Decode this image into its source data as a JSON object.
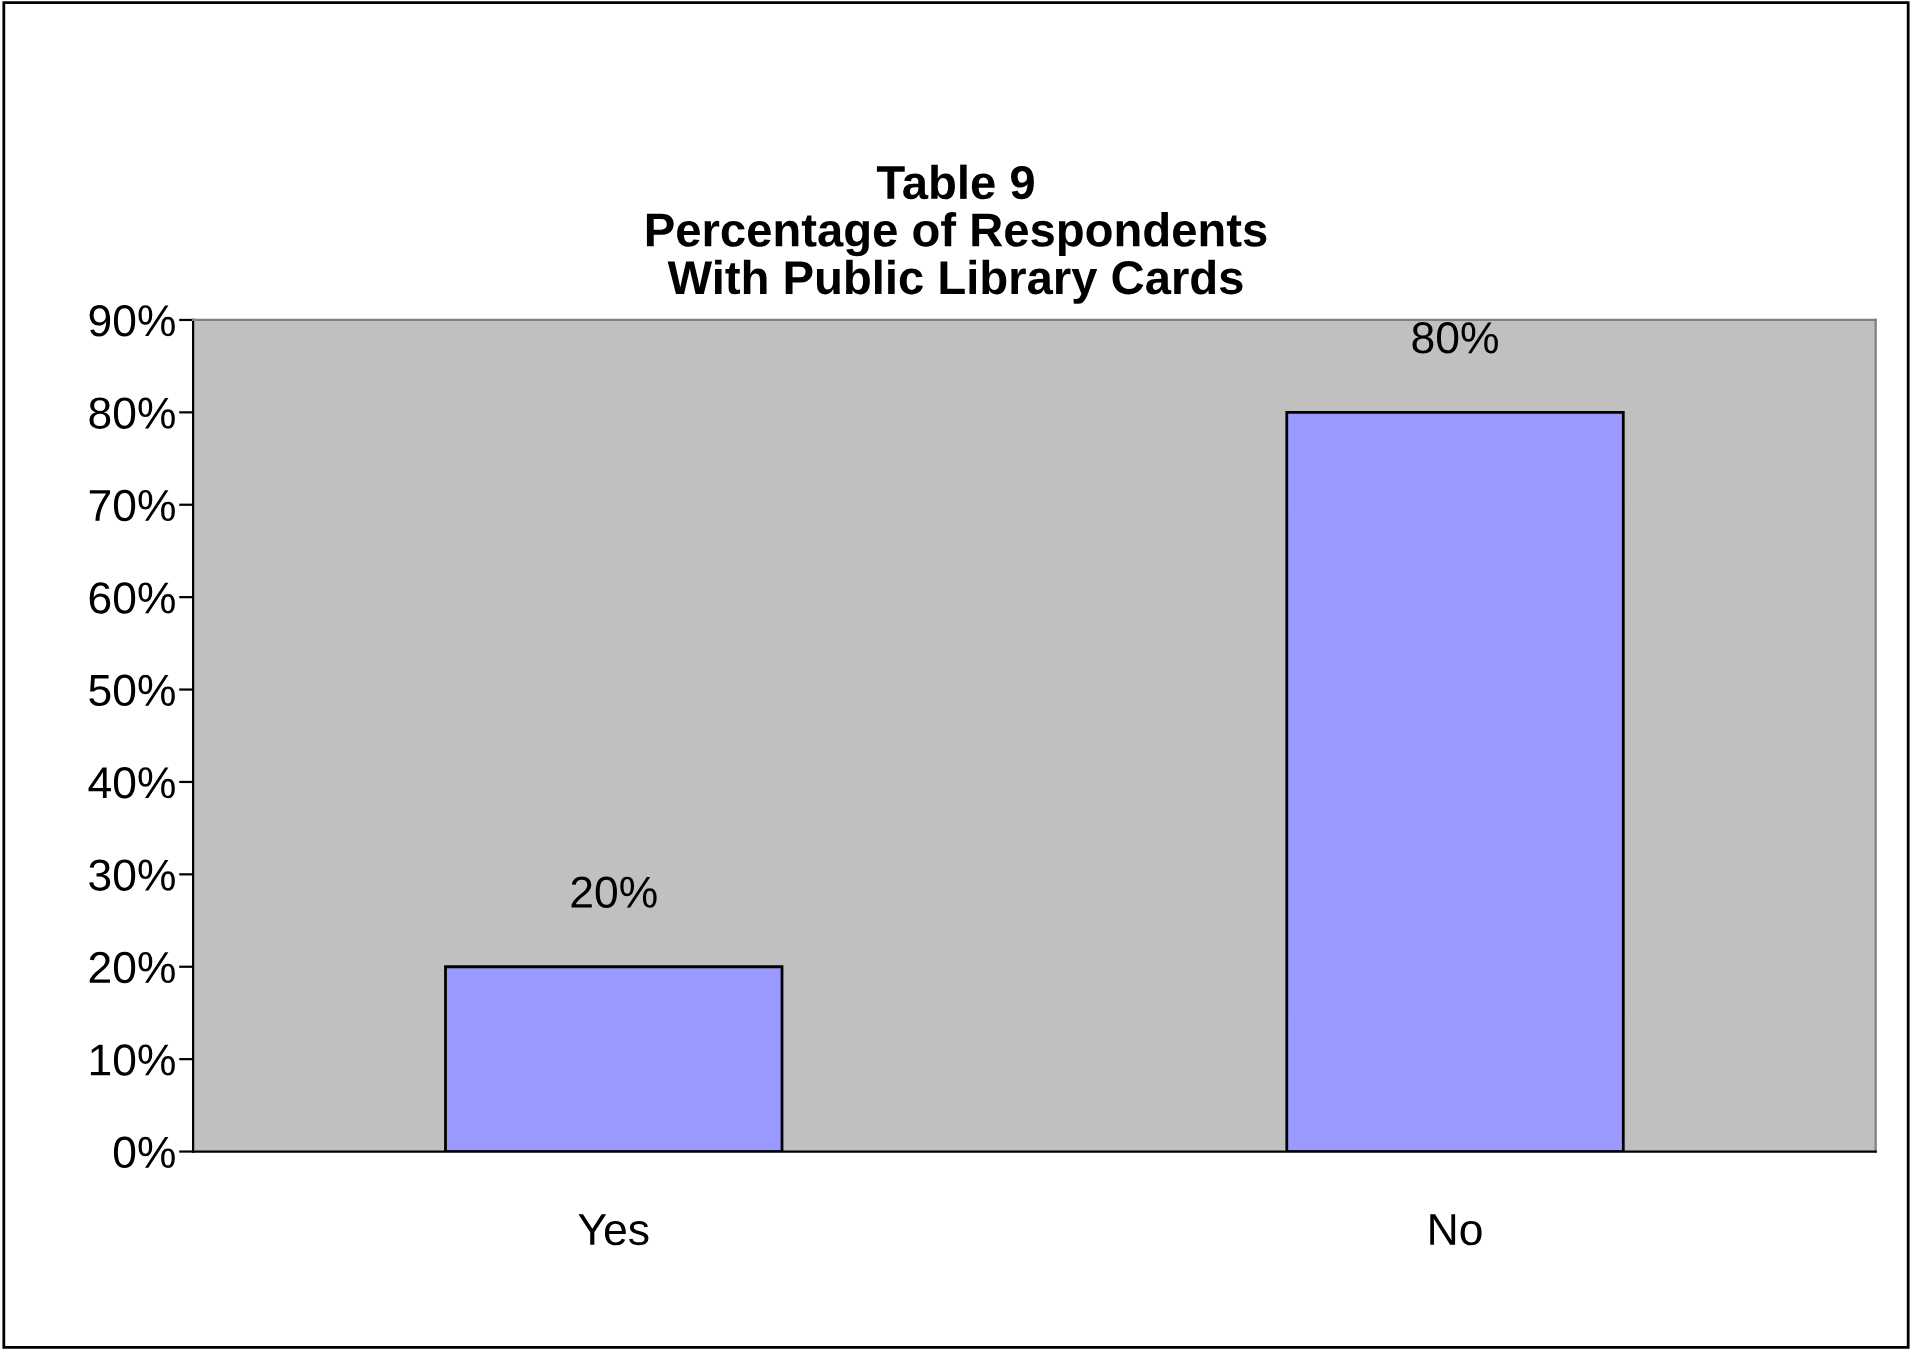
{
  "chart_data": {
    "type": "bar",
    "title": "Table 9\nPercentage of Respondents\nWith Public Library Cards",
    "categories": [
      "Yes",
      "No"
    ],
    "values": [
      20,
      80
    ],
    "value_labels": [
      "20%",
      "80%"
    ],
    "color": "#9999ff",
    "ylim": [
      0,
      90
    ],
    "yticks": [
      {
        "value": 0,
        "label": "0%"
      },
      {
        "value": 10,
        "label": "10%"
      },
      {
        "value": 20,
        "label": "20%"
      },
      {
        "value": 30,
        "label": "30%"
      },
      {
        "value": 40,
        "label": "40%"
      },
      {
        "value": 50,
        "label": "50%"
      },
      {
        "value": 60,
        "label": "60%"
      },
      {
        "value": 70,
        "label": "70%"
      },
      {
        "value": 80,
        "label": "80%"
      },
      {
        "value": 90,
        "label": "90%"
      }
    ],
    "grid": false,
    "legend": false
  }
}
